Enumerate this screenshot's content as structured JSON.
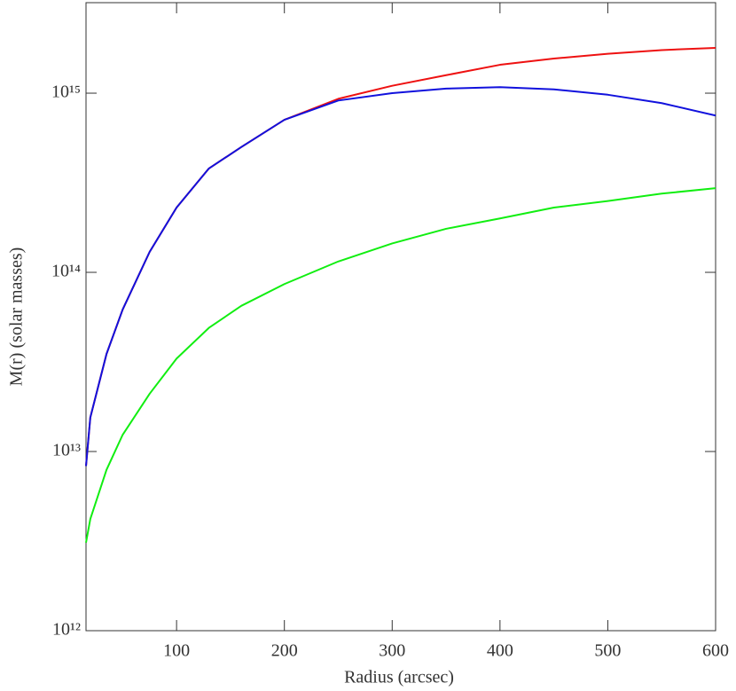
{
  "chart_data": {
    "type": "line",
    "xlabel": "Radius (arcsec)",
    "ylabel": "M(r) (solar masses)",
    "x": [
      16,
      20,
      35,
      50,
      75,
      100,
      130,
      160,
      200,
      250,
      300,
      350,
      400,
      450,
      500,
      550,
      600
    ],
    "series": [
      {
        "color": "#ee1111",
        "values": [
          8300000000000.0,
          15500000000000.0,
          35000000000000.0,
          62000000000000.0,
          130000000000000.0,
          230000000000000.0,
          380000000000000.0,
          500000000000000.0,
          710000000000000.0,
          930000000000000.0,
          1100000000000000.0,
          1260000000000000.0,
          1440000000000000.0,
          1560000000000000.0,
          1660000000000000.0,
          1740000000000000.0,
          1790000000000000.0
        ]
      },
      {
        "color": "#1111dd",
        "values": [
          8300000000000.0,
          15500000000000.0,
          35000000000000.0,
          62000000000000.0,
          130000000000000.0,
          230000000000000.0,
          380000000000000.0,
          500000000000000.0,
          710000000000000.0,
          910000000000000.0,
          1000000000000000.0,
          1060000000000000.0,
          1080000000000000.0,
          1050000000000000.0,
          980000000000000.0,
          880000000000000.0,
          750000000000000.0
        ]
      },
      {
        "color": "#11ee11",
        "values": [
          3100000000000.0,
          4200000000000.0,
          7900000000000.0,
          12400000000000.0,
          21000000000000.0,
          33000000000000.0,
          49000000000000.0,
          65000000000000.0,
          86000000000000.0,
          115000000000000.0,
          145000000000000.0,
          175000000000000.0,
          200000000000000.0,
          230000000000000.0,
          250000000000000.0,
          275000000000000.0,
          295000000000000.0
        ]
      }
    ],
    "xlim": [
      16,
      600
    ],
    "xticks": [
      100,
      200,
      300,
      400,
      500,
      600
    ],
    "ylim": [
      1000000000000.0,
      3200000000000000.0
    ],
    "ylog": true,
    "yticks": [
      {
        "value": 1000000000000.0,
        "label": "10¹²"
      },
      {
        "value": 10000000000000.0,
        "label": "10¹³"
      },
      {
        "value": 100000000000000.0,
        "label": "10¹⁴"
      },
      {
        "value": 1000000000000000.0,
        "label": "10¹⁵"
      }
    ],
    "grid": false
  }
}
